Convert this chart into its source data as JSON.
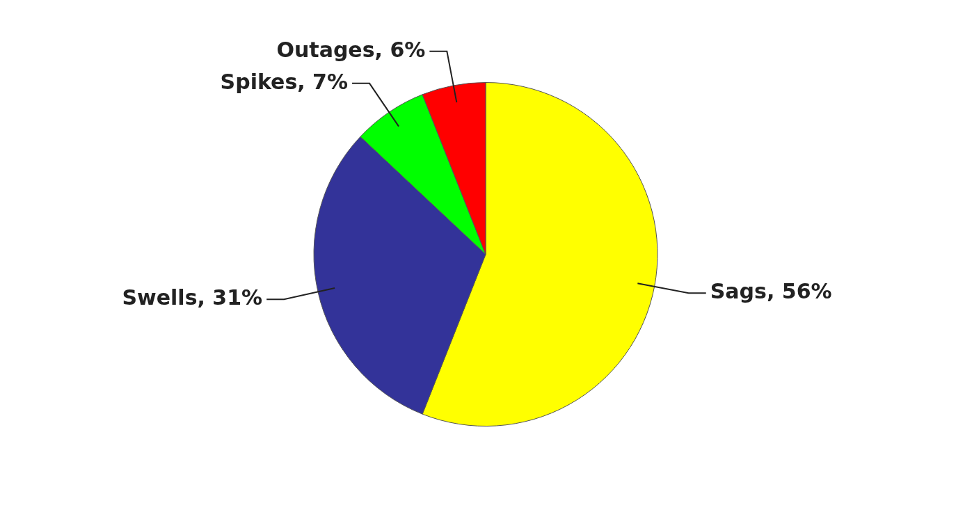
{
  "chart_data": {
    "type": "pie",
    "categories": [
      "Sags",
      "Swells",
      "Spikes",
      "Outages"
    ],
    "values": [
      56,
      31,
      7,
      6
    ],
    "value_labels": [
      "56%",
      "31%",
      "7%",
      "6%"
    ],
    "colors": [
      "#ffff00",
      "#333399",
      "#00ff00",
      "#ff0000"
    ],
    "legend": false
  }
}
